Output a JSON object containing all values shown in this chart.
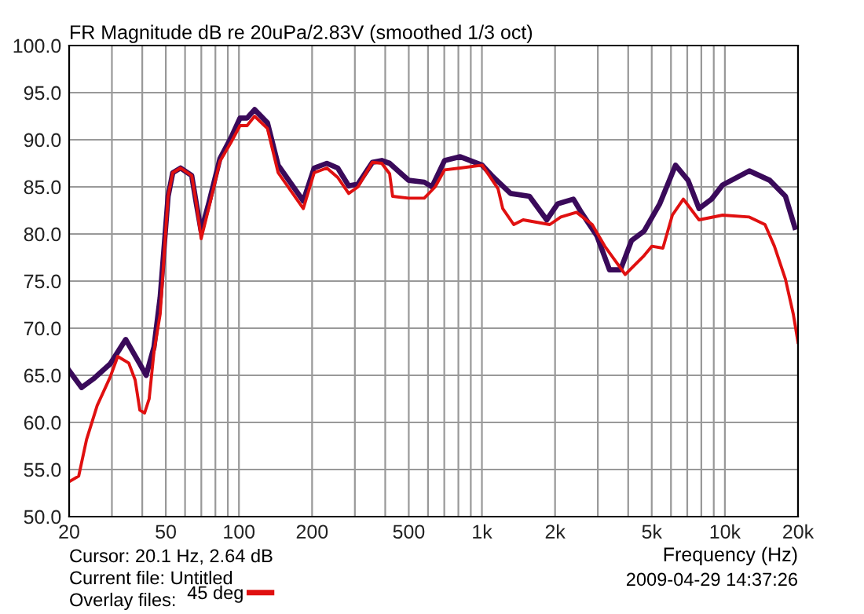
{
  "chart_data": {
    "type": "line",
    "title": "FR Magnitude dB re 20uPa/2.83V (smoothed 1/3 oct)",
    "xlabel": "Frequency (Hz)",
    "log": "x",
    "xlim": [
      20,
      20000
    ],
    "ylim": [
      50,
      100
    ],
    "xticks": [
      20,
      {
        "value": 30,
        "label": null
      },
      {
        "value": 40,
        "label": null
      },
      50,
      {
        "value": 60,
        "label": null
      },
      {
        "value": 70,
        "label": null
      },
      {
        "value": 80,
        "label": null
      },
      {
        "value": 90,
        "label": null
      },
      100,
      200,
      {
        "value": 300,
        "label": null
      },
      {
        "value": 400,
        "label": null
      },
      500,
      {
        "value": 600,
        "label": null
      },
      {
        "value": 700,
        "label": null
      },
      {
        "value": 800,
        "label": null
      },
      {
        "value": 900,
        "label": null
      },
      {
        "value": 1000,
        "label": "1k"
      },
      {
        "value": 2000,
        "label": "2k"
      },
      {
        "value": 3000,
        "label": null
      },
      {
        "value": 4000,
        "label": null
      },
      {
        "value": 5000,
        "label": "5k"
      },
      {
        "value": 6000,
        "label": null
      },
      {
        "value": 7000,
        "label": null
      },
      {
        "value": 8000,
        "label": null
      },
      {
        "value": 9000,
        "label": null
      },
      {
        "value": 10000,
        "label": "10k"
      },
      {
        "value": 20000,
        "label": "20k"
      }
    ],
    "yticks": [
      {
        "value": 50,
        "label": "50.0"
      },
      {
        "value": 55,
        "label": "55.0"
      },
      {
        "value": 60,
        "label": "60.0"
      },
      {
        "value": 65,
        "label": "65.0"
      },
      {
        "value": 70,
        "label": "70.0"
      },
      {
        "value": 75,
        "label": "75.0"
      },
      {
        "value": 80,
        "label": "80.0"
      },
      {
        "value": 85,
        "label": "85.0"
      },
      {
        "value": 90,
        "label": "90.0"
      },
      {
        "value": 95,
        "label": "95.0"
      },
      {
        "value": 100,
        "label": "100.0"
      }
    ],
    "grid": true,
    "legend": "bottom",
    "line_style": "solid",
    "annotations": [
      "Cursor: 20.1 Hz, 2.64 dB",
      "Current file: Untitled",
      "Overlay files:",
      "2009-04-29 14:37:26"
    ],
    "series": [
      {
        "color": "#3a0a5a",
        "x": [
          20,
          22.5,
          25.4,
          29.5,
          34.2,
          39.1,
          41.5,
          44.7,
          47.4,
          51.1,
          53.4,
          57.5,
          63.9,
          66.8,
          69.9,
          75.2,
          83.5,
          92.7,
          101,
          108,
          116,
          131,
          145,
          184,
          204,
          230,
          255,
          283,
          309,
          354,
          387,
          417,
          499,
          579,
          623,
          702,
          814,
          1003,
          1098,
          1312,
          1569,
          1848,
          2050,
          2380,
          2564,
          2974,
          3350,
          3718,
          4128,
          4650,
          5394,
          6262,
          7054,
          7826,
          8816,
          9784,
          12604,
          15294,
          17756,
          19410
        ],
        "values": [
          65.5,
          63.7,
          64.7,
          66.2,
          68.8,
          66.2,
          65.0,
          68.0,
          73.3,
          84.0,
          86.5,
          87.0,
          86.2,
          83.2,
          80.3,
          83.3,
          88.0,
          90.2,
          92.3,
          92.3,
          93.2,
          91.8,
          87.3,
          83.5,
          87.0,
          87.5,
          87.0,
          85.1,
          85.3,
          87.6,
          87.8,
          87.5,
          85.7,
          85.5,
          85.0,
          87.8,
          88.2,
          87.3,
          86.2,
          84.3,
          84.0,
          81.5,
          83.2,
          83.7,
          82.3,
          79.8,
          76.2,
          76.2,
          79.3,
          80.3,
          83.2,
          87.3,
          85.7,
          82.7,
          83.7,
          85.2,
          86.7,
          85.7,
          84.0,
          80.7
        ]
      },
      {
        "name": "45 deg",
        "color": "#e01010",
        "x": [
          20,
          21.9,
          23.6,
          26.1,
          29.5,
          31.7,
          35.2,
          37.4,
          39.1,
          40.9,
          42.7,
          44.7,
          47.4,
          51.1,
          53.4,
          57.5,
          63.9,
          66.8,
          69.9,
          75.2,
          83.5,
          92.7,
          101,
          108,
          116,
          131,
          145,
          184,
          204,
          230,
          255,
          283,
          309,
          354,
          387,
          417,
          429,
          499,
          579,
          642,
          702,
          814,
          1003,
          1165,
          1218,
          1352,
          1478,
          1902,
          2112,
          2452,
          2844,
          3204,
          3888,
          4650,
          5008,
          5558,
          6078,
          6746,
          7826,
          9784,
          12604,
          14626,
          15992,
          17756,
          19122,
          20000
        ],
        "values": [
          53.7,
          54.3,
          58.2,
          61.8,
          64.8,
          67.0,
          66.3,
          64.5,
          61.3,
          61.0,
          62.5,
          67.5,
          71.5,
          84.0,
          86.5,
          87.0,
          86.2,
          83.2,
          79.5,
          82.8,
          87.7,
          89.7,
          91.5,
          91.5,
          92.5,
          91.2,
          86.5,
          82.7,
          86.5,
          87.0,
          86.0,
          84.3,
          85.0,
          87.6,
          87.5,
          86.4,
          84.0,
          83.8,
          83.8,
          85.0,
          86.8,
          87.0,
          87.3,
          84.8,
          82.7,
          81.0,
          81.5,
          81.0,
          81.8,
          82.3,
          81.0,
          78.7,
          75.7,
          77.7,
          78.7,
          78.5,
          82.0,
          83.7,
          81.5,
          82.0,
          81.8,
          81.0,
          78.7,
          75.2,
          71.5,
          68.5
        ]
      }
    ]
  }
}
